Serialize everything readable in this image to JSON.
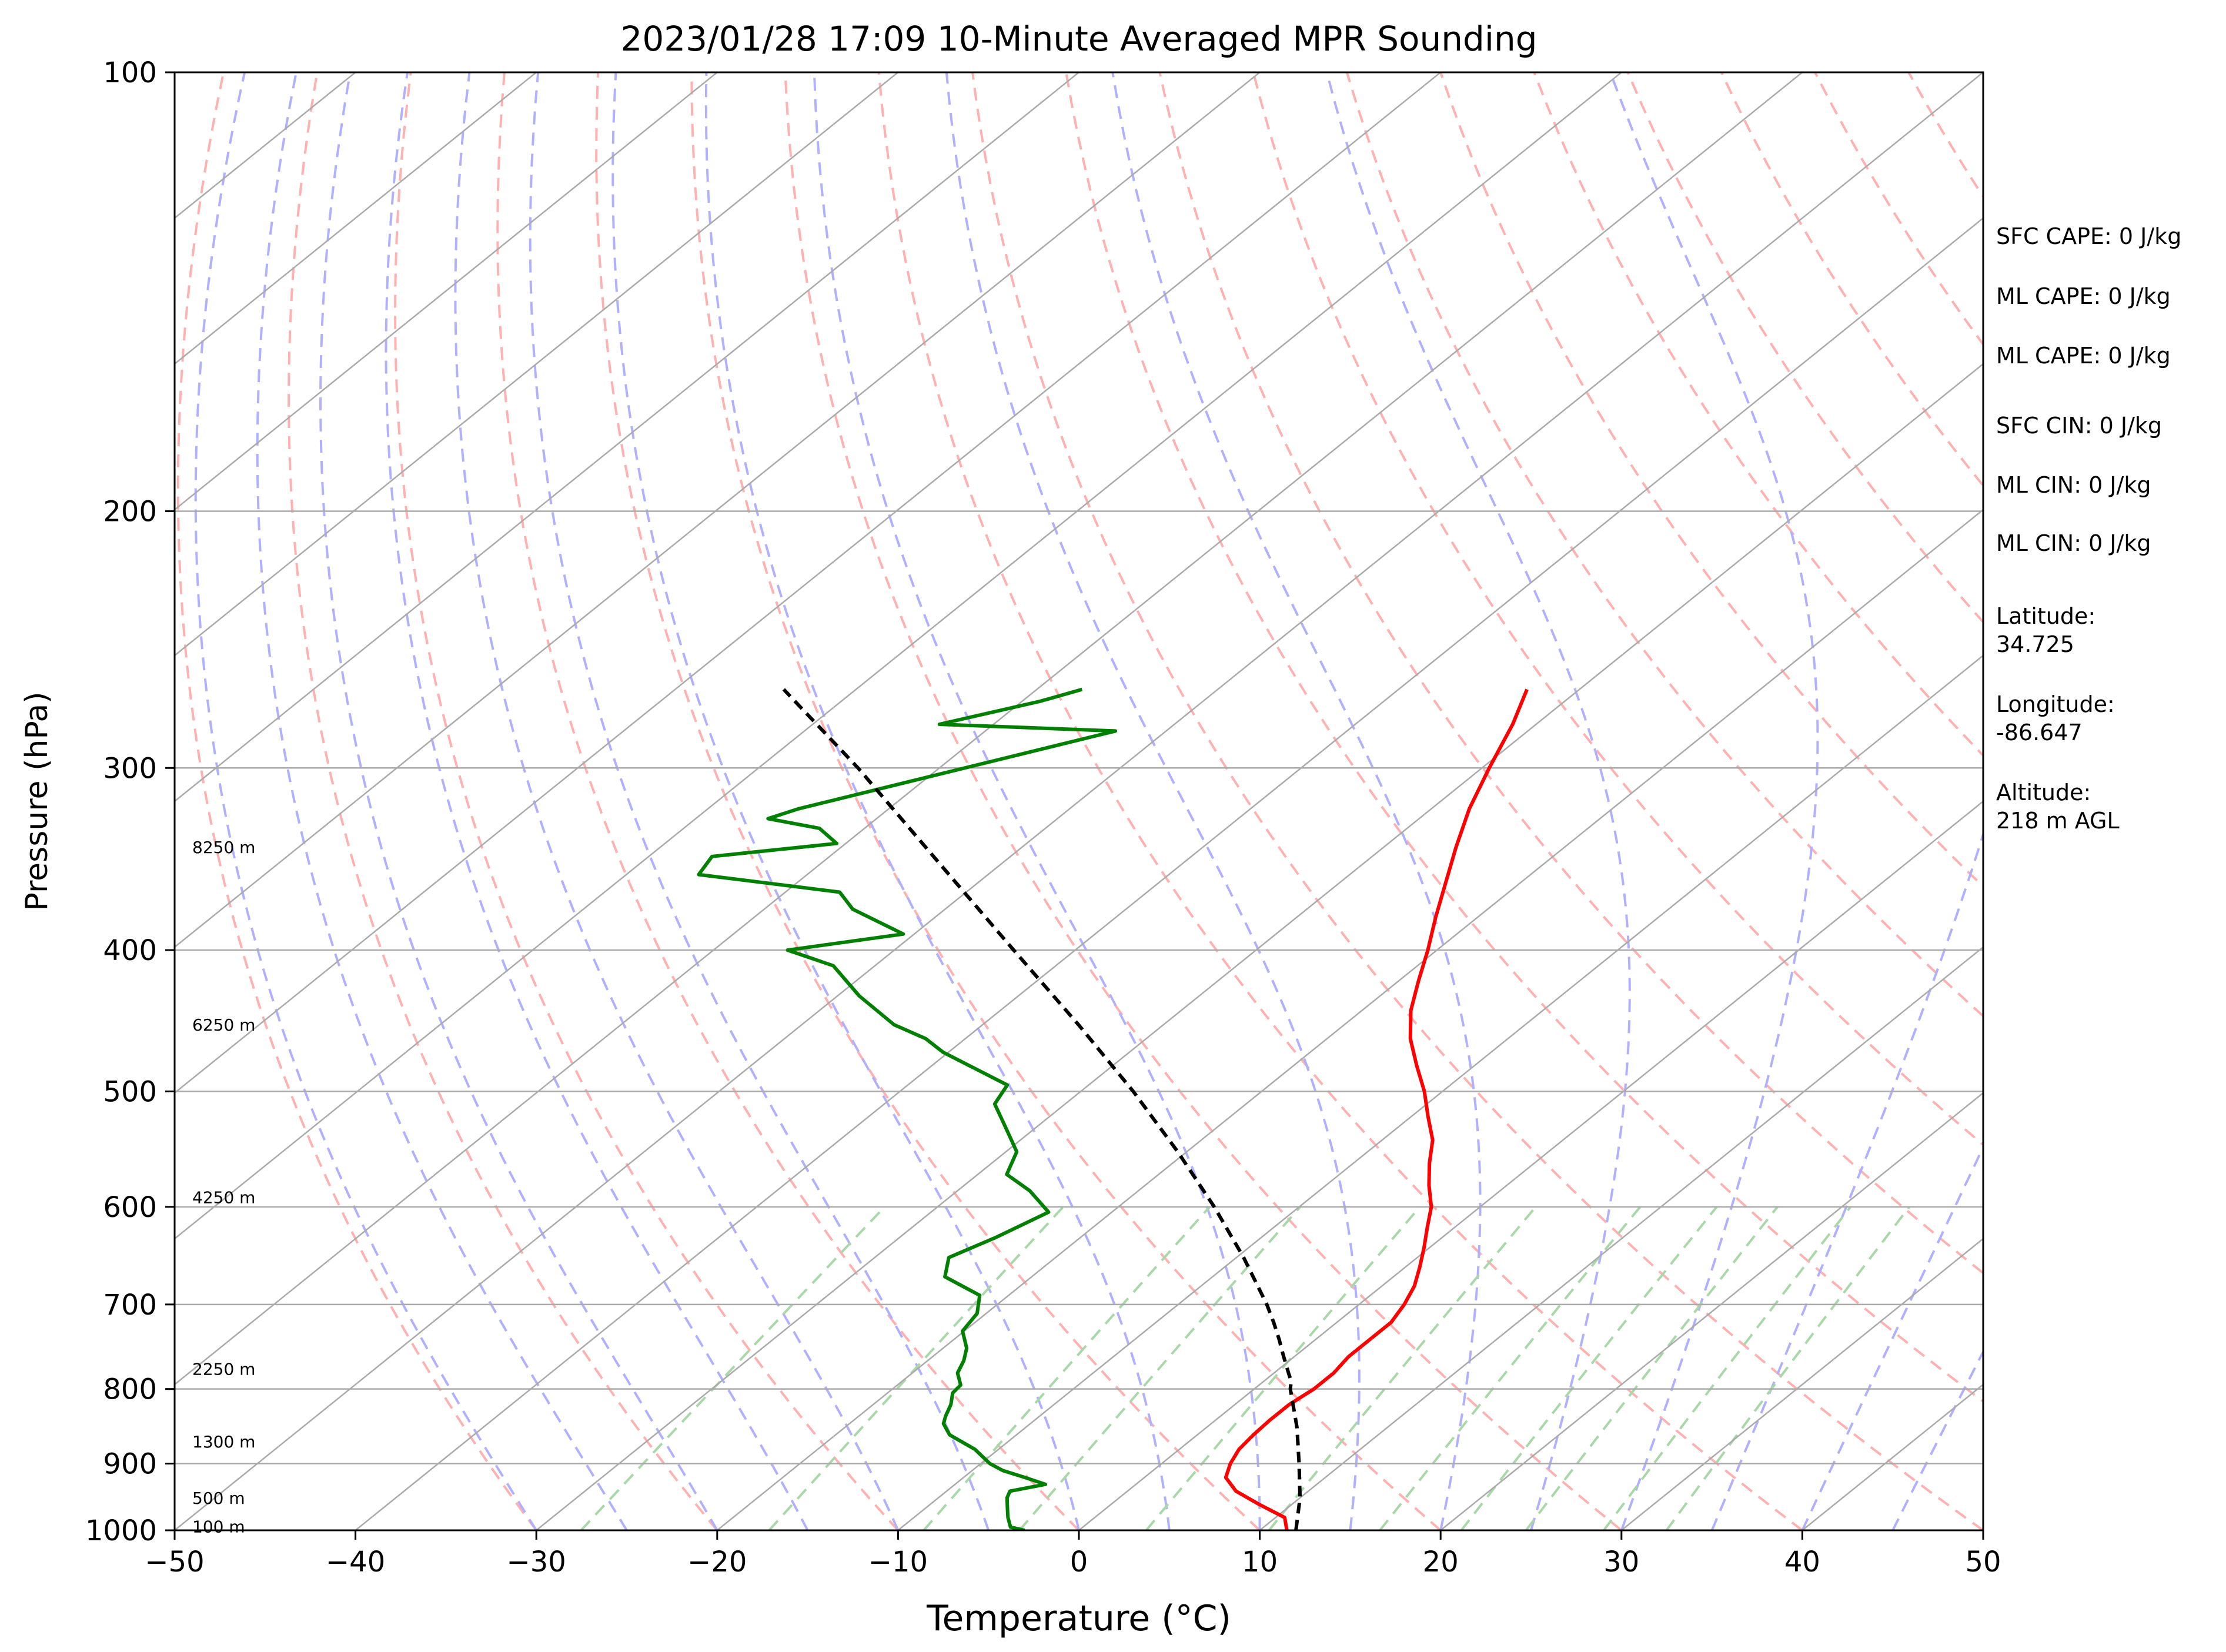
{
  "chart_data": {
    "type": "line",
    "title": "2023/01/28 17:09 10-Minute Averaged MPR Sounding",
    "xlabel": "Temperature (°C)",
    "ylabel": "Pressure (hPa)",
    "xlim": [
      -50,
      50
    ],
    "ylim": [
      1000,
      100
    ],
    "y_scale": "log",
    "grid": true,
    "x_ticks": [
      -50,
      -40,
      -30,
      -20,
      -10,
      0,
      10,
      20,
      30,
      40,
      50
    ],
    "x_tick_labels": [
      "−50",
      "−40",
      "−30",
      "−20",
      "−10",
      "0",
      "10",
      "20",
      "30",
      "40",
      "50"
    ],
    "y_ticks": [
      1000,
      900,
      800,
      700,
      600,
      500,
      400,
      300,
      200,
      100
    ],
    "y_tick_labels": [
      "1000",
      "900",
      "800",
      "700",
      "600",
      "500",
      "400",
      "300",
      "200",
      "100"
    ],
    "colors": {
      "temperature": "#ff0000",
      "dewpoint": "#008000",
      "parcel": "#000000",
      "isotherm": "#aaaaaa",
      "dry_adiabat": "#ffb0b0",
      "moist_adiabat": "#b0b0ff",
      "mixing_ratio": "#a8d8a8"
    },
    "series": [
      {
        "key": "temperature",
        "pressure": [
          1000,
          980,
          960,
          940,
          920,
          900,
          880,
          860,
          840,
          820,
          800,
          780,
          760,
          740,
          720,
          700,
          680,
          660,
          640,
          620,
          600,
          580,
          560,
          540,
          520,
          500,
          480,
          460,
          440,
          420,
          400,
          380,
          360,
          340,
          320,
          300,
          280,
          265
        ],
        "temperature": [
          11.5,
          10.5,
          8.2,
          6.0,
          4.5,
          3.8,
          3.3,
          3.1,
          3.0,
          3.0,
          3.3,
          3.3,
          3.0,
          3.0,
          3.0,
          2.5,
          1.8,
          0.8,
          -0.3,
          -1.5,
          -2.7,
          -4.3,
          -5.8,
          -7.2,
          -9.1,
          -11.0,
          -13.2,
          -15.4,
          -17.3,
          -18.9,
          -20.5,
          -22.3,
          -24.1,
          -26.0,
          -27.9,
          -29.6,
          -31.3,
          -32.9
        ]
      },
      {
        "key": "dewpoint",
        "pressure": [
          1000,
          995,
          980,
          965,
          950,
          940,
          930,
          920,
          910,
          900,
          880,
          860,
          845,
          835,
          820,
          805,
          795,
          780,
          765,
          750,
          730,
          710,
          690,
          670,
          650,
          630,
          605,
          585,
          570,
          550,
          530,
          510,
          495,
          470,
          460,
          450,
          430,
          410,
          400,
          390,
          375,
          365,
          355,
          345,
          338,
          330,
          325,
          320,
          285,
          283,
          280,
          270,
          265
        ],
        "temperature": [
          -3.0,
          -4.0,
          -4.8,
          -5.5,
          -6.2,
          -6.5,
          -5.0,
          -6.6,
          -8.3,
          -9.5,
          -11.3,
          -13.7,
          -14.8,
          -15.2,
          -15.7,
          -16.4,
          -16.5,
          -17.5,
          -18.0,
          -18.7,
          -20.1,
          -20.5,
          -21.6,
          -24.8,
          -25.9,
          -24.7,
          -23.5,
          -26.0,
          -28.4,
          -29.4,
          -31.6,
          -33.9,
          -34.5,
          -40.3,
          -42.2,
          -44.9,
          -48.8,
          -52.3,
          -55.9,
          -50.6,
          -55.1,
          -57.0,
          -66.0,
          -66.5,
          -60.5,
          -62.5,
          -66.0,
          -65.0,
          -53.5,
          -52.8,
          -63.0,
          -59.0,
          -57.5
        ]
      },
      {
        "key": "parcel",
        "pressure": [
          1000,
          950,
          900,
          850,
          800,
          790,
          780,
          760,
          740,
          720,
          700,
          650,
          600,
          550,
          500,
          450,
          400,
          350,
          300,
          265
        ],
        "temperature": [
          12.0,
          10.0,
          7.6,
          5.0,
          2.0,
          1.5,
          0.8,
          -0.6,
          -2.0,
          -3.5,
          -5.1,
          -9.6,
          -14.7,
          -20.5,
          -27.1,
          -34.7,
          -43.4,
          -53.2,
          -64.5,
          -74.0
        ]
      }
    ],
    "height_labels": [
      {
        "text": "100 m",
        "pressure": 994
      },
      {
        "text": "500 m",
        "pressure": 950
      },
      {
        "text": "1300 m",
        "pressure": 869
      },
      {
        "text": "2250 m",
        "pressure": 775
      },
      {
        "text": "4250 m",
        "pressure": 591
      },
      {
        "text": "6250 m",
        "pressure": 450
      },
      {
        "text": "8250 m",
        "pressure": 340
      }
    ]
  },
  "indices": [
    "SFC CAPE: 0 J/kg",
    "ML CAPE: 0 J/kg",
    "ML CAPE: 0 J/kg",
    "SFC CIN: 0 J/kg",
    "ML CIN: 0 J/kg",
    "ML CIN: 0 J/kg"
  ],
  "location": {
    "latitude_label": "Latitude:",
    "latitude_value": "34.725",
    "longitude_label": "Longitude:",
    "longitude_value": "-86.647",
    "altitude_label": "Altitude:",
    "altitude_value": "218 m AGL"
  }
}
